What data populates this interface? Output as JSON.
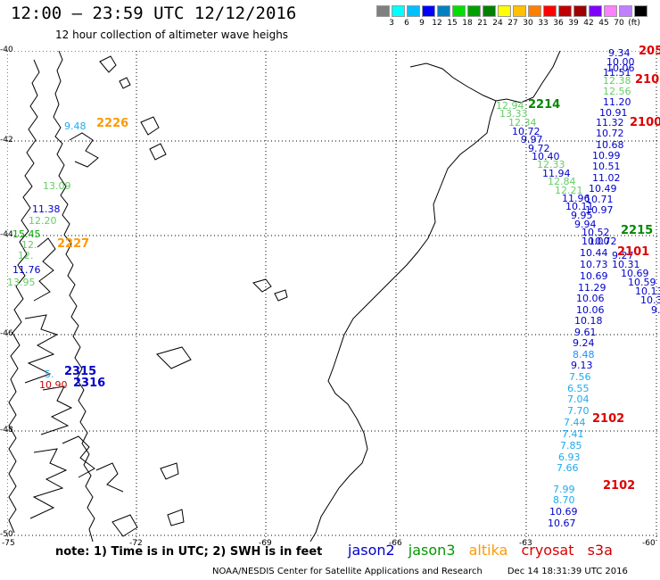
{
  "header": {
    "title": "12:00 – 23:59 UTC 12/12/2016",
    "subtitle": "12 hour collection of altimeter wave heighs"
  },
  "colorbar": {
    "colors": [
      "#808080",
      "#00ffff",
      "#00bfff",
      "#0000ff",
      "#0080c0",
      "#00e000",
      "#00a000",
      "#008000",
      "#ffff00",
      "#ffc000",
      "#ff8000",
      "#ff0000",
      "#c00000",
      "#a00000",
      "#8000ff",
      "#ff80ff",
      "#c080ff",
      "#000000"
    ],
    "labels": [
      "3",
      "6",
      "9",
      "12",
      "15",
      "18",
      "21",
      "24",
      "27",
      "30",
      "33",
      "36",
      "39",
      "42",
      "45",
      "70",
      "(ft)"
    ]
  },
  "axes": {
    "lat_labels": [
      "-40",
      "-42",
      "-44",
      "-46",
      "-48",
      "-50"
    ],
    "lon_labels": [
      "-75",
      "-72",
      "-69",
      "-66",
      "-63",
      "-60"
    ]
  },
  "observations": [
    {
      "t": "9.34",
      "c": "#0000cc"
    },
    {
      "t": "10.00",
      "c": "#0000cc"
    },
    {
      "t": "10.06",
      "c": "#0000cc"
    },
    {
      "t": "11.51",
      "c": "#0000cc"
    },
    {
      "t": "12.38",
      "c": "#66cc66"
    },
    {
      "t": "12.56",
      "c": "#66cc66"
    },
    {
      "t": "11.20",
      "c": "#0000cc"
    },
    {
      "t": "10.91",
      "c": "#0000cc"
    },
    {
      "t": "11.32",
      "c": "#0000cc"
    },
    {
      "t": "10.72",
      "c": "#0000cc"
    },
    {
      "t": "10.68",
      "c": "#0000cc"
    },
    {
      "t": "10.99",
      "c": "#0000cc"
    },
    {
      "t": "10.51",
      "c": "#0000cc"
    },
    {
      "t": "11.02",
      "c": "#0000cc"
    },
    {
      "t": "10.49",
      "c": "#0000cc"
    },
    {
      "t": "10.71",
      "c": "#0000cc"
    },
    {
      "t": "10.97",
      "c": "#0000cc"
    },
    {
      "t": "10.00",
      "c": "#0000cc"
    },
    {
      "t": "10.44",
      "c": "#0000cc"
    },
    {
      "t": "10.73",
      "c": "#0000cc"
    },
    {
      "t": "10.69",
      "c": "#0000cc"
    },
    {
      "t": "11.29",
      "c": "#0000cc"
    },
    {
      "t": "10.06",
      "c": "#0000cc"
    },
    {
      "t": "10.06",
      "c": "#0000cc"
    },
    {
      "t": "10.18",
      "c": "#0000cc"
    },
    {
      "t": "9.61",
      "c": "#0000cc"
    },
    {
      "t": "9.24",
      "c": "#0000cc"
    },
    {
      "t": "8.48",
      "c": "#1e90ff"
    },
    {
      "t": "9.13",
      "c": "#0000cc"
    },
    {
      "t": "7.56",
      "c": "#1eaaee"
    },
    {
      "t": "6.55",
      "c": "#1eaaee"
    },
    {
      "t": "7.04",
      "c": "#1eaaee"
    },
    {
      "t": "7.70",
      "c": "#1eaaee"
    },
    {
      "t": "7.44",
      "c": "#1eaaee"
    },
    {
      "t": "7.41",
      "c": "#1eaaee"
    },
    {
      "t": "7.85",
      "c": "#1eaaee"
    },
    {
      "t": "6.93",
      "c": "#1eaaee"
    },
    {
      "t": "7.66",
      "c": "#1eaaee"
    },
    {
      "t": "7.99",
      "c": "#1eaaee"
    },
    {
      "t": "8.70",
      "c": "#1eaaee"
    },
    {
      "t": "10.69",
      "c": "#0000cc"
    },
    {
      "t": "10.67",
      "c": "#0000cc"
    },
    {
      "t": "12.94",
      "c": "#66cc66"
    },
    {
      "t": "13.33",
      "c": "#66cc66"
    },
    {
      "t": "12.34",
      "c": "#66cc66"
    },
    {
      "t": "10.72",
      "c": "#0000cc"
    },
    {
      "t": "9.97",
      "c": "#0000cc"
    },
    {
      "t": "9.72",
      "c": "#0000cc"
    },
    {
      "t": "10.40",
      "c": "#0000cc"
    },
    {
      "t": "12.33",
      "c": "#66cc66"
    },
    {
      "t": "11.94",
      "c": "#0000cc"
    },
    {
      "t": "12.84",
      "c": "#66cc66"
    },
    {
      "t": "12.21",
      "c": "#66cc66"
    },
    {
      "t": "11.96",
      "c": "#0000cc"
    },
    {
      "t": "10.11",
      "c": "#0000cc"
    },
    {
      "t": "9.95",
      "c": "#0000cc"
    },
    {
      "t": "9.94",
      "c": "#0000cc"
    },
    {
      "t": "10.52",
      "c": "#0000cc"
    },
    {
      "t": "10.72",
      "c": "#0000cc"
    },
    {
      "t": "9.27",
      "c": "#0000cc"
    },
    {
      "t": "10.31",
      "c": "#0000cc"
    },
    {
      "t": "10.69",
      "c": "#0000cc"
    },
    {
      "t": "10.59",
      "c": "#0000cc"
    },
    {
      "t": "10.13",
      "c": "#0000cc"
    },
    {
      "t": "10.3",
      "c": "#0000cc"
    },
    {
      "t": "9.",
      "c": "#0000cc"
    },
    {
      "t": "9.48",
      "c": "#1eaaee"
    },
    {
      "t": "13.09",
      "c": "#66cc66"
    },
    {
      "t": "11.38",
      "c": "#0000cc"
    },
    {
      "t": "12.20",
      "c": "#66cc66"
    },
    {
      "t": "15.45",
      "c": "#00aa00"
    },
    {
      "t": "12.",
      "c": "#66cc66"
    },
    {
      "t": "12.",
      "c": "#66cc66"
    },
    {
      "t": "13.95",
      "c": "#66cc66"
    },
    {
      "t": "11.76",
      "c": "#0000cc"
    },
    {
      "t": "5.",
      "c": "#1eaaee"
    },
    {
      "t": "10.90",
      "c": "#cc0000"
    }
  ],
  "times": [
    {
      "t": "205",
      "c": "#dd0000"
    },
    {
      "t": "210",
      "c": "#dd0000"
    },
    {
      "t": "2100",
      "c": "#dd0000"
    },
    {
      "t": "2214",
      "c": "#008800"
    },
    {
      "t": "2215",
      "c": "#008800"
    },
    {
      "t": "2101",
      "c": "#dd0000"
    },
    {
      "t": "2102",
      "c": "#dd0000"
    },
    {
      "t": "2102",
      "c": "#dd0000"
    },
    {
      "t": "2226",
      "c": "#ff9900"
    },
    {
      "t": "2227",
      "c": "#ff9900"
    },
    {
      "t": "2315",
      "c": "#0000cc"
    },
    {
      "t": "2316",
      "c": "#0000cc"
    }
  ],
  "note": "note: 1) Time is in UTC; 2) SWH is in feet",
  "legend": {
    "jason2": {
      "label": "jason2",
      "color": "#0000cc"
    },
    "jason3": {
      "label": "jason3",
      "color": "#009900"
    },
    "altika": {
      "label": "altika",
      "color": "#ff9900"
    },
    "cryosat": {
      "label": "cryosat",
      "color": "#dd0000"
    },
    "s3a": {
      "label": "s3a",
      "color": "#cc0000"
    }
  },
  "footer": {
    "org": "NOAA/NESDIS Center for Satellite Applications and Research",
    "timestamp": "Dec 14 18:31:39 UTC 2016"
  }
}
